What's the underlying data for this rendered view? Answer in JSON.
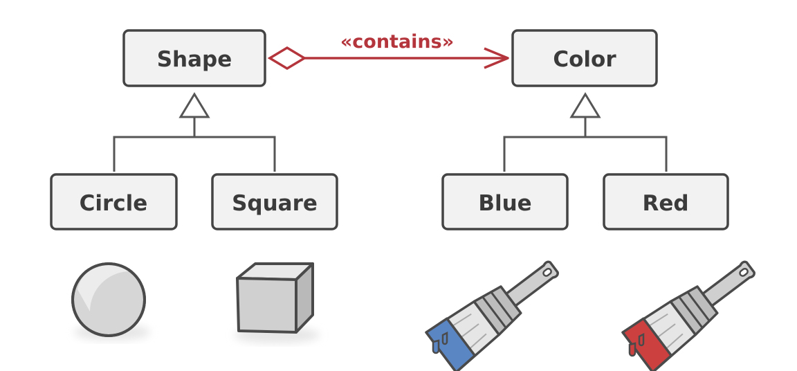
{
  "diagram": {
    "classes": {
      "shape": "Shape",
      "color": "Color",
      "circle": "Circle",
      "square": "Square",
      "blue": "Blue",
      "red": "Red"
    },
    "relation_label": "«contains»"
  },
  "colors": {
    "box_fill": "#f2f2f2",
    "box_stroke": "#444444",
    "relation": "#b5353c",
    "paint_blue": "#5b86c4",
    "paint_red": "#cc4040",
    "object_gray": "#d9d9d9"
  },
  "icons": [
    "sphere-icon",
    "cube-icon",
    "blue-paintbrush-icon",
    "red-paintbrush-icon"
  ]
}
